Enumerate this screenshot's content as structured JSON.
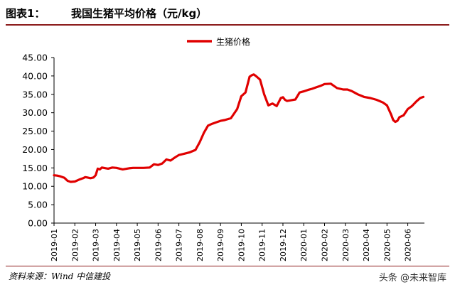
{
  "figure": {
    "number": "图表1：",
    "title": "我国生猪平均价格（元/kg）",
    "source": "资料来源：Wind  中信建投",
    "watermark": "头条 @未来智库"
  },
  "colors": {
    "line": "#e00000",
    "rule": "#8b1a1a"
  },
  "chart_data": {
    "type": "line",
    "title": "我国生猪平均价格（元/kg）",
    "ylim": [
      0,
      45
    ],
    "y_ticks": [
      "0.00",
      "5.00",
      "10.00",
      "15.00",
      "20.00",
      "25.00",
      "30.00",
      "35.00",
      "40.00",
      "45.00"
    ],
    "x_ticks": [
      "2019-01",
      "2019-02",
      "2019-03",
      "2019-04",
      "2019-05",
      "2019-06",
      "2019-07",
      "2019-08",
      "2019-09",
      "2019-10",
      "2019-11",
      "2019-12",
      "2020-01",
      "2020-02",
      "2020-03",
      "2020-04",
      "2020-05",
      "2020-06"
    ],
    "legend_position": "top-center",
    "grid": false,
    "series": [
      {
        "name": "生猪价格",
        "x": [
          0.0,
          0.15,
          0.3,
          0.5,
          0.65,
          0.8,
          1.0,
          1.2,
          1.4,
          1.5,
          1.6,
          1.75,
          1.9,
          2.0,
          2.1,
          2.2,
          2.3,
          2.5,
          2.6,
          2.8,
          3.0,
          3.3,
          3.6,
          3.8,
          4.0,
          4.3,
          4.6,
          4.8,
          5.0,
          5.2,
          5.4,
          5.6,
          5.8,
          6.0,
          6.3,
          6.5,
          6.8,
          7.0,
          7.2,
          7.4,
          7.6,
          7.8,
          8.0,
          8.2,
          8.5,
          8.8,
          9.0,
          9.2,
          9.4,
          9.5,
          9.6,
          9.7,
          9.9,
          10.1,
          10.3,
          10.5,
          10.7,
          10.9,
          11.0,
          11.1,
          11.2,
          11.4,
          11.6,
          11.8,
          12.0,
          12.2,
          12.4,
          12.6,
          12.8,
          13.0,
          13.3,
          13.6,
          13.9,
          14.1,
          14.3,
          14.6,
          14.9,
          15.2,
          15.5,
          15.8,
          16.0,
          16.2,
          16.3,
          16.4,
          16.5,
          16.6,
          16.8,
          17.0,
          17.2,
          17.4,
          17.6,
          17.75
        ],
        "values": [
          13.0,
          12.9,
          12.7,
          12.3,
          11.5,
          11.2,
          11.3,
          11.8,
          12.2,
          12.5,
          12.4,
          12.2,
          12.4,
          13.0,
          14.8,
          14.6,
          15.1,
          14.9,
          14.8,
          15.1,
          15.0,
          14.6,
          14.9,
          15.0,
          15.0,
          15.0,
          15.1,
          16.0,
          15.8,
          16.2,
          17.3,
          17.0,
          17.8,
          18.5,
          18.9,
          19.2,
          19.9,
          22.0,
          24.5,
          26.5,
          27.0,
          27.4,
          27.8,
          28.0,
          28.5,
          31.0,
          34.5,
          35.5,
          39.8,
          40.2,
          40.4,
          40.0,
          39.0,
          35.0,
          32.0,
          32.5,
          31.8,
          34.0,
          34.2,
          33.5,
          33.2,
          33.4,
          33.6,
          35.5,
          35.8,
          36.2,
          36.5,
          36.9,
          37.3,
          37.8,
          37.9,
          36.7,
          36.3,
          36.3,
          35.9,
          35.0,
          34.3,
          34.0,
          33.5,
          32.8,
          32.0,
          29.5,
          28.0,
          27.5,
          27.8,
          28.8,
          29.3,
          31.0,
          31.8,
          33.0,
          34.0,
          34.3
        ]
      }
    ]
  }
}
